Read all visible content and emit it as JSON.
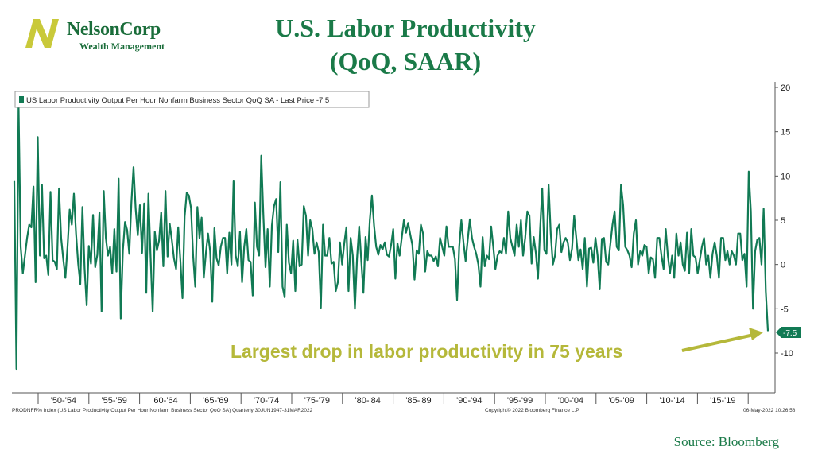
{
  "header": {
    "logo_name": "NelsonCorp",
    "logo_subtitle": "Wealth Management",
    "title_line1": "U.S. Labor Productivity",
    "title_line2": "(QoQ, SAAR)"
  },
  "footer": {
    "source": "Source: Bloomberg",
    "bloomberg_left": "PRODNFR% Index (US Labor Productivity Output Per Hour Nonfarm Business Sector QoQ SA) Quarterly 30JUN1947-31MAR2022",
    "bloomberg_center": "Copyright© 2022 Bloomberg Finance L.P.",
    "bloomberg_right": "06-May-2022 10:26:58"
  },
  "colors": {
    "series": "#117a54",
    "title": "#1a7a48",
    "annotation": "#b5b83a",
    "logo_accent": "#c9c93a"
  },
  "chart_data": {
    "type": "line",
    "x_start": "1947Q3",
    "frequency": "quarterly",
    "ylim": [
      -14,
      22
    ],
    "yticks": [
      20,
      15,
      10,
      5,
      0,
      -5,
      -10
    ],
    "y_axis_side": "right",
    "grid": false,
    "legend": {
      "placement": "top-left",
      "text": "US Labor Productivity Output Per Hour Nonfarm Business Sector QoQ SA - Last Price -7.5"
    },
    "last_price_label": "-7.5",
    "annotation": "Largest drop in labor productivity in 75 years",
    "x_tick_labels": [
      "'50-'54",
      "'55-'59",
      "'60-'64",
      "'65-'69",
      "'70-'74",
      "'75-'79",
      "'80-'84",
      "'85-'89",
      "'90-'94",
      "'95-'99",
      "'00-'04",
      "'05-'09",
      "'10-'14",
      "'15-'19"
    ],
    "series": [
      {
        "name": "US Labor Productivity Output Per Hour Nonfarm Business Sector QoQ SA",
        "values": [
          9.4,
          -11.8,
          18.0,
          2.0,
          -1.0,
          1.0,
          3.0,
          4.5,
          4.2,
          8.8,
          -2.0,
          14.4,
          1.0,
          9.0,
          0.7,
          1.0,
          -1.2,
          8.2,
          0.5,
          0.3,
          -0.5,
          8.6,
          3.0,
          0.6,
          -1.5,
          2.0,
          6.2,
          4.5,
          8.0,
          3.5,
          0.1,
          -2.2,
          6.5,
          -0.4,
          -4.6,
          2.1,
          0.1,
          5.6,
          -0.3,
          1.1,
          5.9,
          -5.3,
          8.3,
          3.0,
          1.0,
          2.0,
          -1.0,
          4.0,
          -0.8,
          9.7,
          -6.1,
          1.6,
          4.8,
          3.9,
          1.2,
          7.0,
          11.0,
          6.3,
          3.3,
          6.7,
          1.3,
          6.9,
          -3.2,
          8.0,
          1.0,
          -5.3,
          3.7,
          1.6,
          2.7,
          5.9,
          -0.2,
          8.3,
          0.9,
          4.6,
          2.8,
          0.7,
          -0.5,
          4.2,
          0.5,
          -3.8,
          5.4,
          8.1,
          7.8,
          6.4,
          1.0,
          -2.5,
          6.5,
          3.0,
          5.3,
          -1.5,
          1.3,
          3.5,
          1.5,
          -4.2,
          4.1,
          0.7,
          -0.1,
          2.0,
          3.0,
          3.0,
          -1.0,
          3.6,
          0.0,
          9.4,
          1.0,
          -0.2,
          3.7,
          -2.0,
          2.0,
          4.0,
          0.5,
          0.3,
          -3.5,
          7.0,
          2.0,
          1.0,
          12.3,
          5.5,
          -0.3,
          4.0,
          -2.5,
          4.4,
          6.6,
          7.4,
          1.4,
          9.3,
          -2.5,
          -3.7,
          4.5,
          0.2,
          -1.0,
          2.7,
          -3.0,
          2.8,
          -0.2,
          0.0,
          6.6,
          5.5,
          1.0,
          5.0,
          4.0,
          1.2,
          2.5,
          1.4,
          -4.9,
          4.5,
          1.0,
          1.0,
          3.0,
          0.1,
          0.3,
          -3.0,
          -2.0,
          2.5,
          0.0,
          2.4,
          4.2,
          -3.0,
          3.0,
          1.0,
          -5.0,
          0.7,
          4.3,
          0.4,
          -3.2,
          3.1,
          0.5,
          5.0,
          7.8,
          4.4,
          2.0,
          1.1,
          2.2,
          1.7,
          2.5,
          1.1,
          0.9,
          2.2,
          4.0,
          -1.6,
          2.4,
          1.0,
          3.0,
          5.0,
          3.6,
          4.7,
          3.4,
          2.2,
          -1.7,
          1.6,
          1.2,
          4.5,
          3.5,
          -0.8,
          1.5,
          1.0,
          1.0,
          0.4,
          0.9,
          -0.2,
          3.0,
          2.0,
          1.0,
          4.3,
          2.0,
          2.0,
          2.0,
          0.6,
          -4.0,
          2.0,
          5.0,
          2.5,
          0.4,
          2.8,
          5.1,
          3.0,
          2.0,
          1.2,
          0.0,
          -2.5,
          3.1,
          -0.2,
          1.0,
          0.6,
          4.3,
          2.0,
          -0.5,
          1.0,
          1.5,
          1.3,
          3.0,
          1.2,
          6.0,
          3.0,
          2.0,
          1.0,
          4.5,
          2.0,
          5.0,
          1.0,
          3.0,
          6.0,
          5.5,
          0.1,
          3.1,
          1.3,
          -1.6,
          4.0,
          8.6,
          1.6,
          1.2,
          9.0,
          3.5,
          0.0,
          1.0,
          4.0,
          4.5,
          1.4,
          2.5,
          3.0,
          2.5,
          0.5,
          1.8,
          5.5,
          3.0,
          0.5,
          1.7,
          -0.5,
          3.0,
          -2.5,
          1.8,
          1.9,
          0.2,
          3.0,
          1.0,
          -2.8,
          2.9,
          3.0,
          0.3,
          0.0,
          2.3,
          4.5,
          6.0,
          2.0,
          1.6,
          9.0,
          6.7,
          2.0,
          1.6,
          1.0,
          -0.3,
          3.5,
          5.0,
          0.0,
          1.5,
          1.0,
          2.2,
          2.0,
          -1.0,
          0.8,
          0.6,
          -1.5,
          3.0,
          3.0,
          1.0,
          -0.5,
          4.0,
          1.0,
          -1.0,
          1.0,
          -1.5,
          3.5,
          1.0,
          2.5,
          0.0,
          -0.7,
          3.6,
          -1.0,
          4.0,
          1.0,
          0.8,
          -1.0,
          0.5,
          2.0,
          3.0,
          0.0,
          1.0,
          -1.5,
          1.2,
          2.5,
          1.0,
          -1.5,
          3.0,
          3.0,
          0.5,
          1.5,
          0.0,
          1.5,
          1.0,
          0.0,
          3.5,
          3.5,
          0.5,
          1.2,
          -2.5,
          10.5,
          6.0,
          -5.0,
          1.5,
          2.8,
          3.0,
          0.0,
          6.3,
          -3.0,
          -7.5
        ]
      }
    ]
  }
}
